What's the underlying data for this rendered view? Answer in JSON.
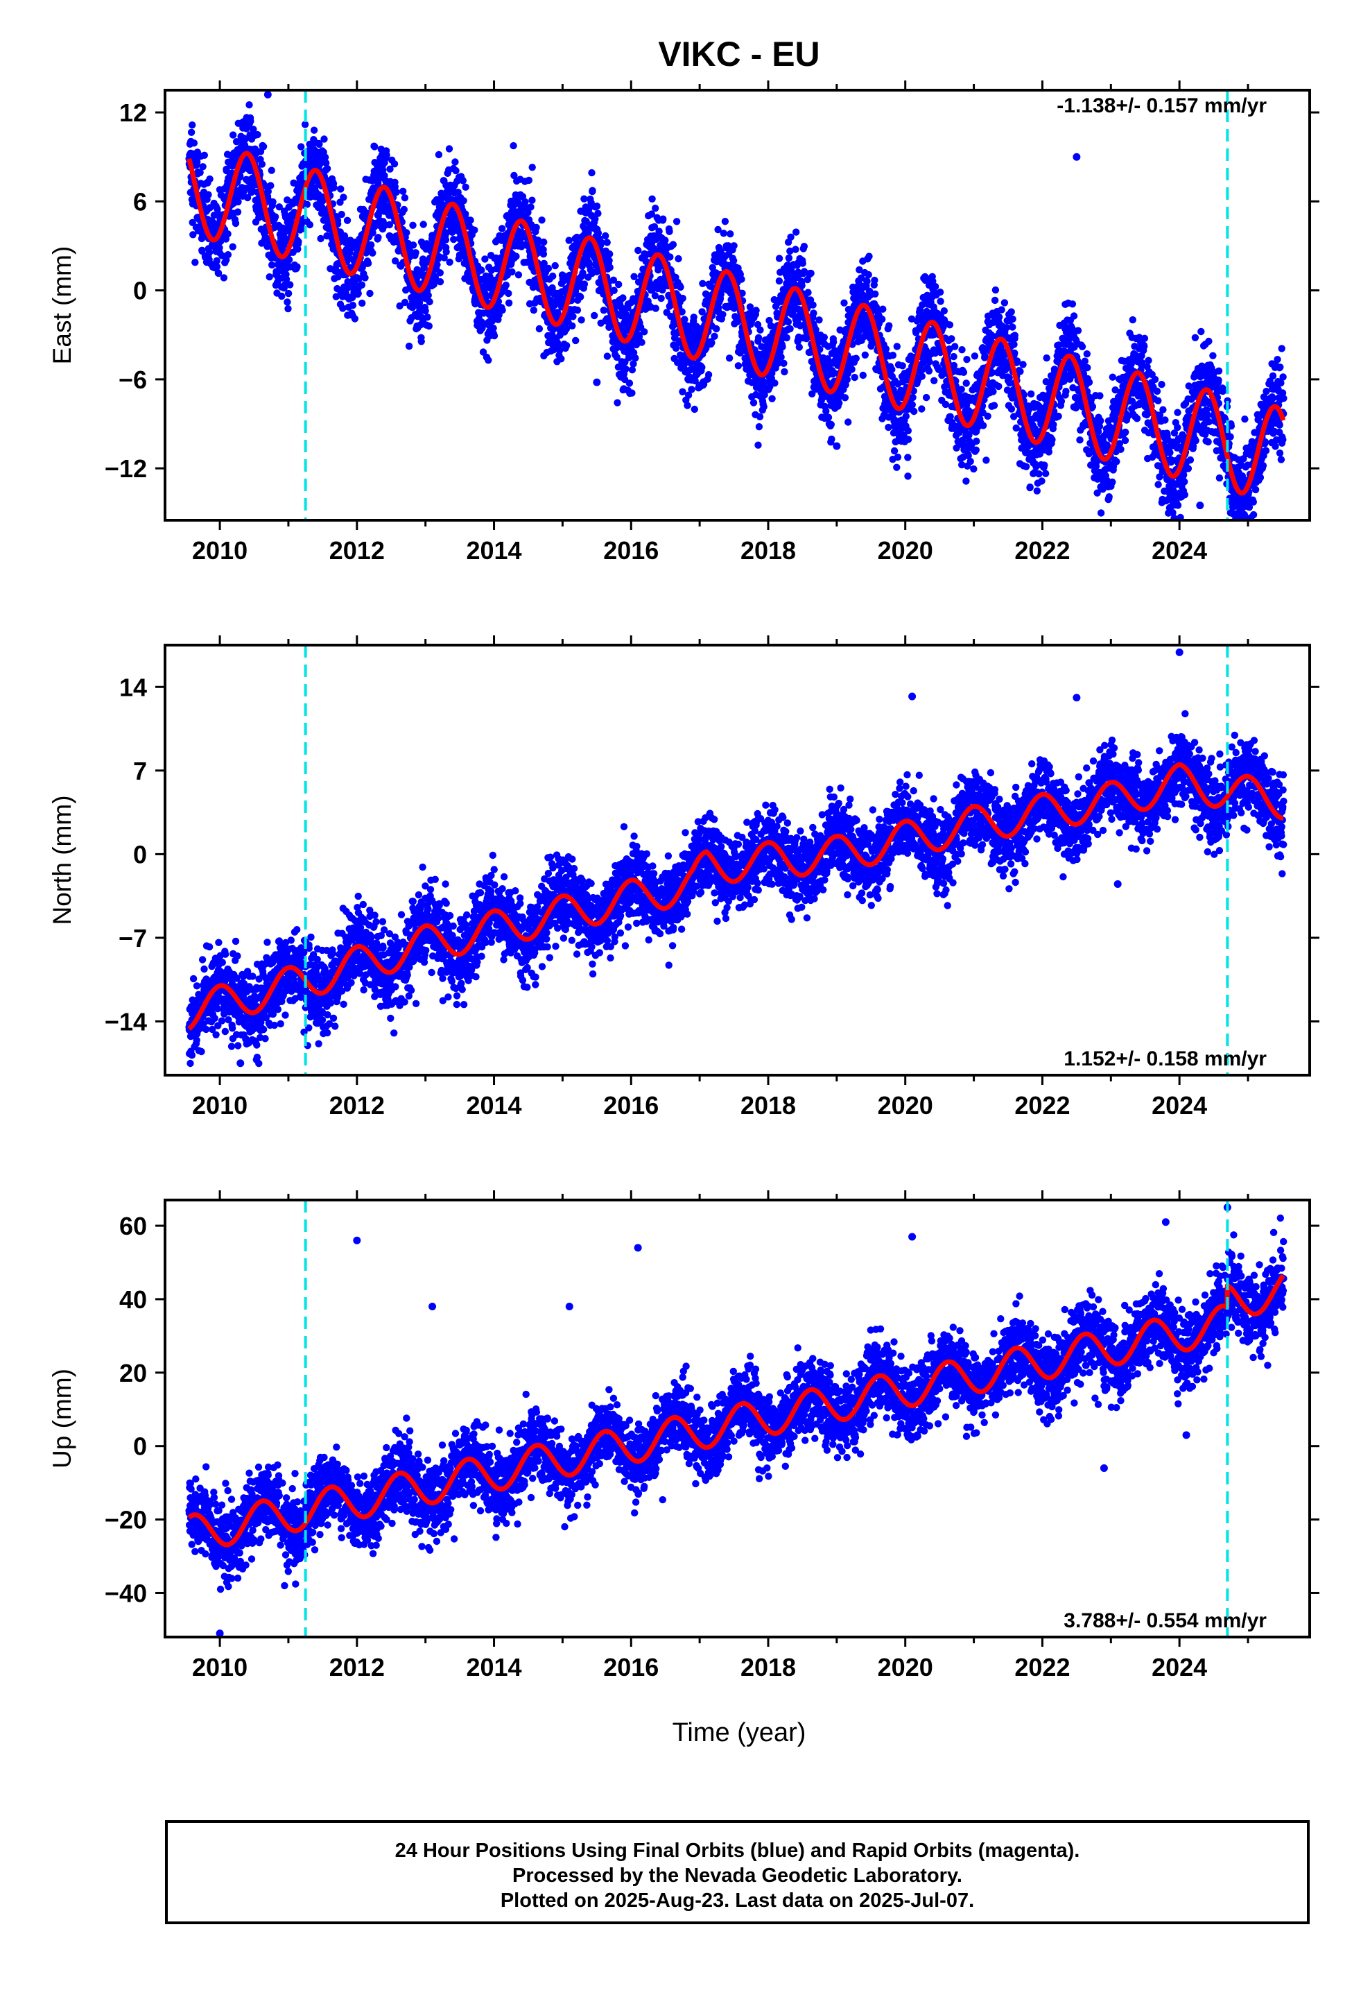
{
  "title": "VIKC - EU",
  "xlabel": "Time (year)",
  "colors": {
    "points": "#0000ff",
    "model": "#ff0000",
    "event_lines": "#00e5e5",
    "frame": "#000000"
  },
  "footer": {
    "line1": "24 Hour Positions Using Final Orbits (blue) and Rapid Orbits (magenta).",
    "line2": "Processed by the Nevada Geodetic Laboratory.",
    "line3": "Plotted on 2025-Aug-23. Last data on 2025-Jul-07."
  },
  "chart_data": [
    {
      "type": "scatter",
      "name": "east",
      "ylabel": "East (mm)",
      "rate_label": "-1.138+/- 0.157 mm/yr",
      "rate_position": "top-right",
      "xlim": [
        2009.2,
        2025.9
      ],
      "ylim": [
        -15.5,
        13.5
      ],
      "xticks": [
        2010,
        2012,
        2014,
        2016,
        2018,
        2020,
        2022,
        2024
      ],
      "yticks": [
        -12,
        -6,
        0,
        6,
        12
      ],
      "ytick_labels": [
        "−12",
        "−6",
        "0",
        "6",
        "12"
      ],
      "x_start": 2009.55,
      "x_end": 2025.52,
      "event_lines_x": [
        2011.25,
        2024.7
      ],
      "model": {
        "intercept": 7.0,
        "slope": -1.138,
        "amplitude": 3.2,
        "peak_phase": 0.4,
        "annual_offset": [
          0,
          0.5,
          1.0,
          1.2,
          1.5,
          2.0,
          2.2,
          2.6,
          2.9,
          3.2,
          3.4,
          3.6,
          3.8,
          4.0,
          4.2,
          4.4,
          4.6
        ]
      },
      "residuals": {
        "sd": 1.6,
        "outliers": [
          [
            2010.7,
            13.2
          ],
          [
            2022.5,
            9.0
          ],
          [
            2024.3,
            -14.5
          ],
          [
            2015.5,
            -6.2
          ],
          [
            2019.0,
            -10.5
          ]
        ]
      }
    },
    {
      "type": "scatter",
      "name": "north",
      "ylabel": "North (mm)",
      "rate_label": "1.152+/- 0.158 mm/yr",
      "rate_position": "bottom-right",
      "xlim": [
        2009.2,
        2025.9
      ],
      "ylim": [
        -18.5,
        17.5
      ],
      "xticks": [
        2010,
        2012,
        2014,
        2016,
        2018,
        2020,
        2022,
        2024
      ],
      "yticks": [
        -14,
        -7,
        0,
        7,
        14
      ],
      "ytick_labels": [
        "−14",
        "−7",
        "0",
        "7",
        "14"
      ],
      "x_start": 2009.55,
      "x_end": 2025.52,
      "event_lines_x": [
        2011.25,
        2024.7
      ],
      "model": {
        "knots": [
          [
            2009.55,
            -13.2
          ],
          [
            2011.0,
            -11.0
          ],
          [
            2013.0,
            -7.5
          ],
          [
            2015.0,
            -5.0
          ],
          [
            2016.9,
            -2.5
          ],
          [
            2017.1,
            -1.0
          ],
          [
            2019.0,
            0.0
          ],
          [
            2021.0,
            2.5
          ],
          [
            2023.0,
            4.5
          ],
          [
            2024.0,
            6.0
          ],
          [
            2025.52,
            4.5
          ]
        ],
        "amplitude": 1.5,
        "peak_phase": 0.0
      },
      "residuals": {
        "sd": 1.6,
        "outliers": [
          [
            2020.1,
            13.2
          ],
          [
            2022.5,
            13.1
          ],
          [
            2024.0,
            16.9
          ],
          [
            2023.1,
            -2.5
          ],
          [
            2010.3,
            -17.5
          ]
        ]
      }
    },
    {
      "type": "scatter",
      "name": "up",
      "ylabel": "Up (mm)",
      "rate_label": "3.788+/- 0.554 mm/yr",
      "rate_position": "bottom-right",
      "xlim": [
        2009.2,
        2025.9
      ],
      "ylim": [
        -52,
        67
      ],
      "xticks": [
        2010,
        2012,
        2014,
        2016,
        2018,
        2020,
        2022,
        2024
      ],
      "yticks": [
        -40,
        -20,
        0,
        20,
        40,
        60
      ],
      "ytick_labels": [
        "−40",
        "−20",
        "0",
        "20",
        "40",
        "60"
      ],
      "x_start": 2009.55,
      "x_end": 2025.52,
      "event_lines_x": [
        2011.25,
        2024.7
      ],
      "model": {
        "intercept": -24.0,
        "slope": 3.788,
        "amplitude": 5.0,
        "peak_phase": 0.62,
        "knots_extra": [
          [
            2024.7,
            6.0
          ],
          [
            2025.52,
            6.0
          ]
        ]
      },
      "residuals": {
        "sd": 5.0,
        "outliers": [
          [
            2012.0,
            56
          ],
          [
            2013.1,
            38
          ],
          [
            2015.1,
            38
          ],
          [
            2016.1,
            54
          ],
          [
            2020.1,
            57
          ],
          [
            2023.8,
            61
          ],
          [
            2024.7,
            65
          ],
          [
            2010.0,
            -51
          ],
          [
            2022.9,
            -6
          ],
          [
            2024.1,
            3
          ]
        ]
      }
    }
  ]
}
